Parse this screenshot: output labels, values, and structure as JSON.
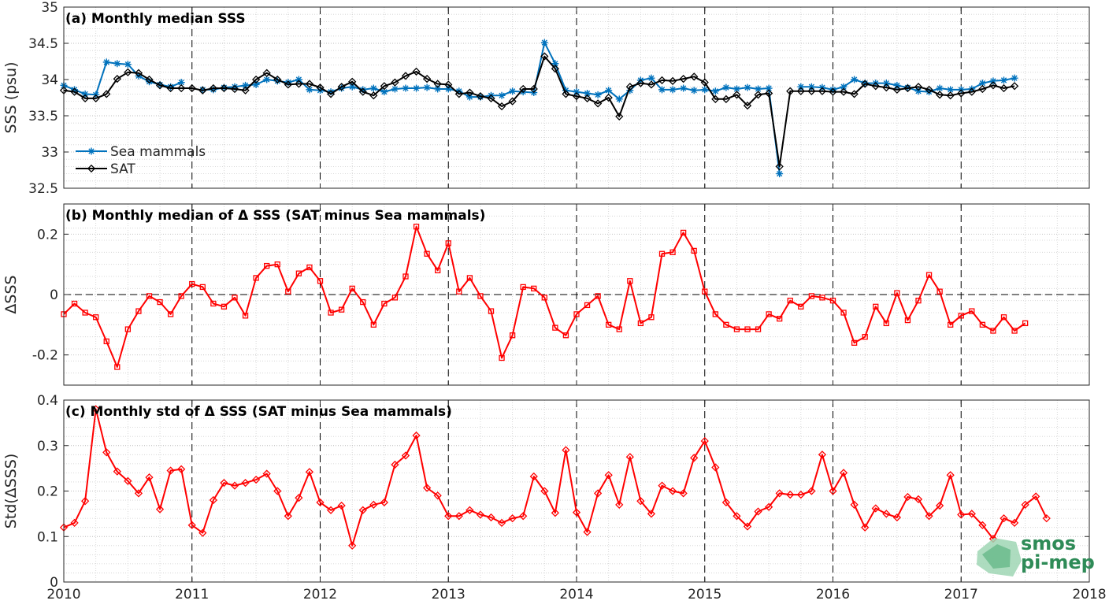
{
  "chart_data": [
    {
      "id": "a",
      "type": "line",
      "title": "(a) Monthly median SSS",
      "xlabel": "",
      "ylabel": "SSS (psu)",
      "xlim": [
        2010,
        2018
      ],
      "ylim": [
        32.5,
        35
      ],
      "yticks": [
        32.5,
        33,
        33.5,
        34,
        34.5,
        35
      ],
      "ytick_labels": [
        "32.5",
        "33",
        "33.5",
        "34",
        "34.5",
        "35"
      ],
      "grid": true,
      "legend": "bottom-left",
      "x_start": "2010-01",
      "x_step_months": 1,
      "series": [
        {
          "name": "Sea mammals",
          "color": "#0072bd",
          "marker": "asterisk",
          "values": [
            33.92,
            33.86,
            33.8,
            33.79,
            34.24,
            34.22,
            34.21,
            34.05,
            33.97,
            33.93,
            33.9,
            33.96,
            null,
            33.86,
            33.86,
            33.89,
            33.9,
            33.92,
            33.93,
            34.0,
            33.98,
            33.96,
            34.0,
            33.86,
            33.85,
            33.83,
            33.88,
            33.9,
            33.86,
            33.88,
            33.83,
            33.87,
            33.88,
            33.88,
            33.89,
            33.87,
            33.87,
            33.84,
            33.76,
            33.76,
            33.78,
            33.78,
            33.84,
            33.83,
            33.82,
            34.51,
            34.22,
            33.85,
            33.83,
            33.81,
            33.79,
            33.85,
            33.73,
            33.85,
            33.99,
            34.02,
            33.86,
            33.86,
            33.88,
            33.85,
            33.86,
            33.84,
            33.89,
            33.87,
            33.89,
            33.87,
            33.88,
            32.7,
            null,
            33.9,
            33.9,
            33.89,
            33.86,
            33.9,
            34.0,
            33.95,
            33.95,
            33.95,
            33.92,
            33.89,
            33.84,
            33.83,
            33.88,
            33.86,
            33.86,
            33.87,
            33.95,
            33.98,
            33.99,
            34.02
          ]
        },
        {
          "name": "SAT",
          "color": "#000000",
          "marker": "diamond",
          "values": [
            33.85,
            33.83,
            33.74,
            33.74,
            33.8,
            34.01,
            34.1,
            34.09,
            34.0,
            33.92,
            33.88,
            33.88,
            33.88,
            33.85,
            33.88,
            33.88,
            33.87,
            33.85,
            34.0,
            34.09,
            34.0,
            33.93,
            33.94,
            33.94,
            33.89,
            33.8,
            33.9,
            33.97,
            33.83,
            33.78,
            33.91,
            33.96,
            34.05,
            34.11,
            34.01,
            33.94,
            33.93,
            33.8,
            33.82,
            33.77,
            33.74,
            33.63,
            33.7,
            33.87,
            33.87,
            34.32,
            34.15,
            33.8,
            33.77,
            33.74,
            33.67,
            33.75,
            33.49,
            33.9,
            33.95,
            33.93,
            33.99,
            33.98,
            34.01,
            34.04,
            33.96,
            33.73,
            33.73,
            33.79,
            33.64,
            33.79,
            33.81,
            32.8,
            33.84,
            33.84,
            33.84,
            33.84,
            33.83,
            33.83,
            33.8,
            33.94,
            33.91,
            33.89,
            33.86,
            33.88,
            33.9,
            33.86,
            33.79,
            33.78,
            33.81,
            33.83,
            33.87,
            33.92,
            33.88,
            33.91
          ]
        }
      ]
    },
    {
      "id": "b",
      "type": "line",
      "title": "(b) Monthly median of Δ SSS (SAT minus Sea mammals)",
      "xlabel": "",
      "ylabel": "ΔSSS",
      "xlim": [
        2010,
        2018
      ],
      "ylim": [
        -0.3,
        0.3
      ],
      "yticks": [
        -0.2,
        0,
        0.2
      ],
      "ytick_labels": [
        "-0.2",
        "0",
        "0.2"
      ],
      "grid": true,
      "zero_line": true,
      "x_start": "2010-01",
      "x_step_months": 1,
      "series": [
        {
          "name": "",
          "color": "#ff0000",
          "marker": "square",
          "values": [
            -0.065,
            -0.03,
            -0.06,
            -0.075,
            -0.155,
            -0.24,
            -0.115,
            -0.055,
            -0.005,
            -0.025,
            -0.065,
            -0.005,
            0.035,
            0.025,
            -0.03,
            -0.04,
            -0.01,
            -0.07,
            0.055,
            0.095,
            0.1,
            0.01,
            0.07,
            0.09,
            0.045,
            -0.06,
            -0.05,
            0.02,
            -0.025,
            -0.1,
            -0.03,
            -0.01,
            0.06,
            0.225,
            0.135,
            0.08,
            0.17,
            0.01,
            0.055,
            -0.005,
            -0.055,
            -0.21,
            -0.135,
            0.025,
            0.02,
            -0.01,
            -0.11,
            -0.135,
            -0.065,
            -0.035,
            -0.005,
            -0.1,
            -0.115,
            0.045,
            -0.095,
            -0.075,
            0.135,
            0.14,
            0.205,
            0.145,
            0.01,
            -0.065,
            -0.1,
            -0.115,
            -0.115,
            -0.115,
            -0.065,
            -0.08,
            -0.02,
            -0.04,
            -0.005,
            -0.01,
            -0.02,
            -0.06,
            -0.16,
            -0.14,
            -0.04,
            -0.095,
            0.005,
            -0.085,
            -0.02,
            0.065,
            0.01,
            -0.1,
            -0.07,
            -0.055,
            -0.1,
            -0.12,
            -0.075,
            -0.12,
            -0.095
          ]
        }
      ]
    },
    {
      "id": "c",
      "type": "line",
      "title": "(c) Monthly std of Δ SSS (SAT minus Sea mammals)",
      "xlabel": "",
      "ylabel": "Std(ΔSSS)",
      "xlim": [
        2010,
        2018
      ],
      "ylim": [
        0,
        0.4
      ],
      "yticks": [
        0,
        0.1,
        0.2,
        0.3,
        0.4
      ],
      "ytick_labels": [
        "0",
        "0.1",
        "0.2",
        "0.3",
        "0.4"
      ],
      "xticks": [
        2010,
        2011,
        2012,
        2013,
        2014,
        2015,
        2016,
        2017,
        2018
      ],
      "xtick_labels": [
        "2010",
        "2011",
        "2012",
        "2013",
        "2014",
        "2015",
        "2016",
        "2017",
        "2018"
      ],
      "grid": true,
      "x_start": "2010-01",
      "x_step_months": 1,
      "series": [
        {
          "name": "",
          "color": "#ff0000",
          "marker": "diamond",
          "values": [
            0.12,
            0.13,
            0.178,
            0.38,
            0.285,
            0.243,
            0.222,
            0.195,
            0.23,
            0.16,
            0.245,
            0.248,
            0.125,
            0.108,
            0.18,
            0.218,
            0.212,
            0.218,
            0.225,
            0.238,
            0.2,
            0.145,
            0.185,
            0.242,
            0.175,
            0.158,
            0.168,
            0.08,
            0.158,
            0.17,
            0.175,
            0.258,
            0.278,
            0.322,
            0.207,
            0.19,
            0.145,
            0.145,
            0.158,
            0.148,
            0.142,
            0.13,
            0.14,
            0.145,
            0.232,
            0.2,
            0.152,
            0.29,
            0.153,
            0.11,
            0.195,
            0.235,
            0.17,
            0.275,
            0.178,
            0.15,
            0.212,
            0.2,
            0.195,
            0.273,
            0.31,
            0.252,
            0.175,
            0.145,
            0.122,
            0.155,
            0.165,
            0.195,
            0.192,
            0.192,
            0.2,
            0.28,
            0.2,
            0.24,
            0.17,
            0.12,
            0.162,
            0.15,
            0.142,
            0.187,
            0.182,
            0.145,
            0.168,
            0.235,
            0.148,
            0.15,
            0.125,
            0.095,
            0.14,
            0.13,
            0.17,
            0.188,
            0.14
          ]
        }
      ]
    }
  ],
  "watermark": {
    "line1": "smos",
    "line2": "pi-mep",
    "color": "#2e8b57"
  }
}
